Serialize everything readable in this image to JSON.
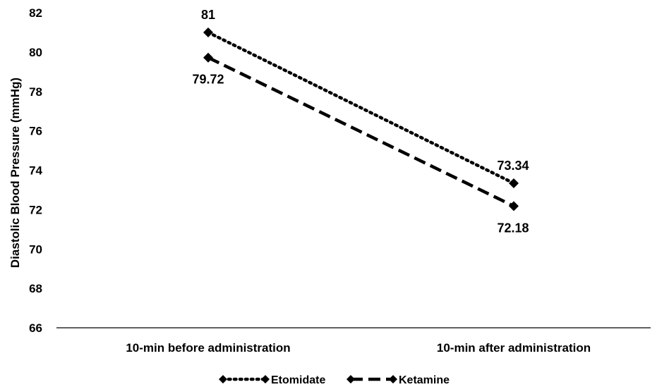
{
  "chart_data": {
    "type": "line",
    "categories": [
      "10-min before administration",
      "10-min after administration"
    ],
    "ylabel": "Diastolic Blood Pressure (mmHg)",
    "xlabel": "",
    "ylim": [
      66,
      82
    ],
    "yticks": [
      66,
      68,
      70,
      72,
      74,
      76,
      78,
      80,
      82
    ],
    "grid": false,
    "legend": "bottom",
    "series": [
      {
        "name": "Etomidate",
        "values": [
          81,
          73.34
        ],
        "labels": [
          "81",
          "73.34"
        ],
        "style": "dotted",
        "marker": "diamond",
        "color": "#000000"
      },
      {
        "name": "Ketamine",
        "values": [
          79.72,
          72.18
        ],
        "labels": [
          "79.72",
          "72.18"
        ],
        "style": "dashed",
        "marker": "diamond",
        "color": "#000000"
      }
    ]
  }
}
